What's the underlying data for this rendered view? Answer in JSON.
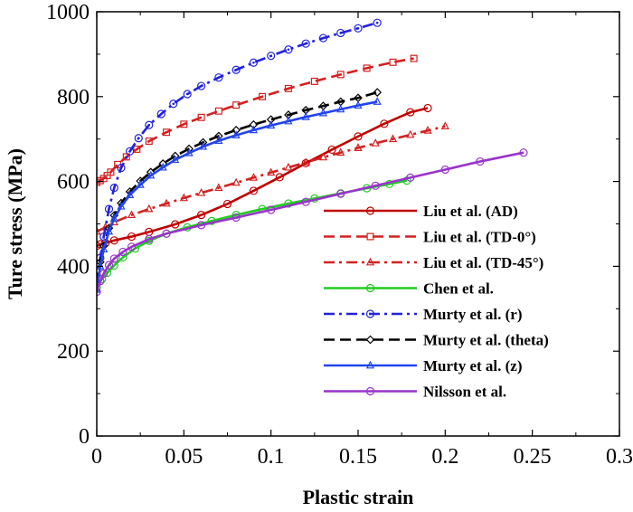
{
  "chart_data": {
    "type": "line",
    "title": "",
    "xlabel": "Plastic strain",
    "ylabel": "Ture stress (MPa)",
    "xlim": [
      0,
      0.3
    ],
    "ylim": [
      0,
      1000
    ],
    "x_ticks": [
      0,
      0.05,
      0.1,
      0.15,
      0.2,
      0.25,
      0.3
    ],
    "x_tick_labels": [
      "0",
      "0.05",
      "0.1",
      "0.15",
      "0.2",
      "0.25",
      "0.3"
    ],
    "y_ticks": [
      0,
      200,
      400,
      600,
      800,
      1000
    ],
    "y_tick_labels": [
      "0",
      "200",
      "400",
      "600",
      "800",
      "1000"
    ],
    "grid": false,
    "legend_position": "lower-right",
    "series": [
      {
        "name": "Liu et al. (AD)",
        "color": "#c00000",
        "dash": "solid",
        "marker": "circle",
        "x": [
          0,
          0.002,
          0.005,
          0.01,
          0.02,
          0.03,
          0.045,
          0.06,
          0.075,
          0.09,
          0.105,
          0.12,
          0.135,
          0.15,
          0.165,
          0.18,
          0.19
        ],
        "y": [
          448,
          452,
          455,
          461,
          470,
          481,
          499,
          521,
          547,
          578,
          610,
          643,
          675,
          706,
          736,
          763,
          773
        ]
      },
      {
        "name": "Liu et al. (TD-0°)",
        "color": "#d42020",
        "dash": "dashed",
        "marker": "square",
        "x": [
          0,
          0.002,
          0.004,
          0.006,
          0.008,
          0.012,
          0.017,
          0.023,
          0.03,
          0.04,
          0.05,
          0.06,
          0.07,
          0.08,
          0.095,
          0.11,
          0.125,
          0.14,
          0.155,
          0.17,
          0.182
        ],
        "y": [
          598,
          602,
          607,
          614,
          622,
          640,
          658,
          676,
          695,
          716,
          735,
          751,
          766,
          780,
          800,
          819,
          836,
          852,
          867,
          881,
          890
        ]
      },
      {
        "name": "Liu et al. (TD-45°)",
        "color": "#d42020",
        "dash": "dashdot",
        "marker": "triangle",
        "x": [
          0,
          0.005,
          0.01,
          0.02,
          0.03,
          0.04,
          0.05,
          0.06,
          0.07,
          0.08,
          0.09,
          0.1,
          0.11,
          0.12,
          0.13,
          0.14,
          0.15,
          0.16,
          0.17,
          0.18,
          0.19,
          0.2
        ],
        "y": [
          482,
          492,
          504,
          521,
          535,
          548,
          561,
          573,
          585,
          597,
          609,
          621,
          633,
          645,
          657,
          668,
          679,
          690,
          700,
          710,
          720,
          730
        ]
      },
      {
        "name": "Chen et al.",
        "color": "#22cc22",
        "dash": "solid",
        "marker": "circle",
        "x": [
          0,
          0.003,
          0.006,
          0.01,
          0.015,
          0.022,
          0.03,
          0.04,
          0.052,
          0.066,
          0.08,
          0.095,
          0.11,
          0.125,
          0.14,
          0.155,
          0.168,
          0.178
        ],
        "y": [
          350,
          370,
          385,
          402,
          421,
          442,
          460,
          477,
          492,
          507,
          521,
          535,
          548,
          560,
          572,
          584,
          594,
          602
        ]
      },
      {
        "name": "Murty et al. (r)",
        "color": "#2222dd",
        "dash": "dashdot",
        "marker": "dotcircle",
        "x": [
          0,
          0.002,
          0.004,
          0.007,
          0.01,
          0.014,
          0.019,
          0.024,
          0.03,
          0.037,
          0.044,
          0.052,
          0.06,
          0.07,
          0.08,
          0.09,
          0.1,
          0.11,
          0.12,
          0.13,
          0.14,
          0.15,
          0.161
        ],
        "y": [
          360,
          420,
          470,
          535,
          585,
          632,
          671,
          702,
          733,
          759,
          783,
          806,
          825,
          845,
          863,
          880,
          896,
          911,
          925,
          938,
          950,
          961,
          974
        ]
      },
      {
        "name": "Murty et al. (theta)",
        "color": "#000000",
        "dash": "dashed",
        "marker": "diamond",
        "x": [
          0,
          0.002,
          0.004,
          0.007,
          0.01,
          0.014,
          0.019,
          0.025,
          0.031,
          0.038,
          0.045,
          0.053,
          0.061,
          0.07,
          0.08,
          0.09,
          0.1,
          0.11,
          0.12,
          0.13,
          0.14,
          0.15,
          0.161
        ],
        "y": [
          358,
          410,
          448,
          490,
          520,
          549,
          576,
          601,
          622,
          642,
          660,
          677,
          692,
          707,
          721,
          734,
          746,
          757,
          768,
          778,
          788,
          797,
          810
        ]
      },
      {
        "name": "Murty et al. (z)",
        "color": "#2244ee",
        "dash": "solid",
        "marker": "triangle",
        "x": [
          0,
          0.002,
          0.004,
          0.007,
          0.01,
          0.014,
          0.019,
          0.025,
          0.031,
          0.038,
          0.045,
          0.053,
          0.061,
          0.07,
          0.08,
          0.09,
          0.1,
          0.11,
          0.12,
          0.13,
          0.14,
          0.15,
          0.161
        ],
        "y": [
          345,
          400,
          440,
          482,
          512,
          541,
          568,
          592,
          614,
          633,
          651,
          667,
          682,
          696,
          709,
          721,
          732,
          742,
          752,
          761,
          770,
          779,
          788
        ]
      },
      {
        "name": "Nilsson et al.",
        "color": "#9933cc",
        "dash": "solid",
        "marker": "circle",
        "x": [
          0,
          0.002,
          0.004,
          0.007,
          0.01,
          0.015,
          0.02,
          0.03,
          0.04,
          0.06,
          0.08,
          0.1,
          0.12,
          0.14,
          0.16,
          0.18,
          0.2,
          0.22,
          0.245
        ],
        "y": [
          340,
          365,
          383,
          403,
          418,
          434,
          446,
          464,
          477,
          497,
          515,
          533,
          552,
          571,
          590,
          609,
          628,
          647,
          668
        ]
      }
    ]
  }
}
